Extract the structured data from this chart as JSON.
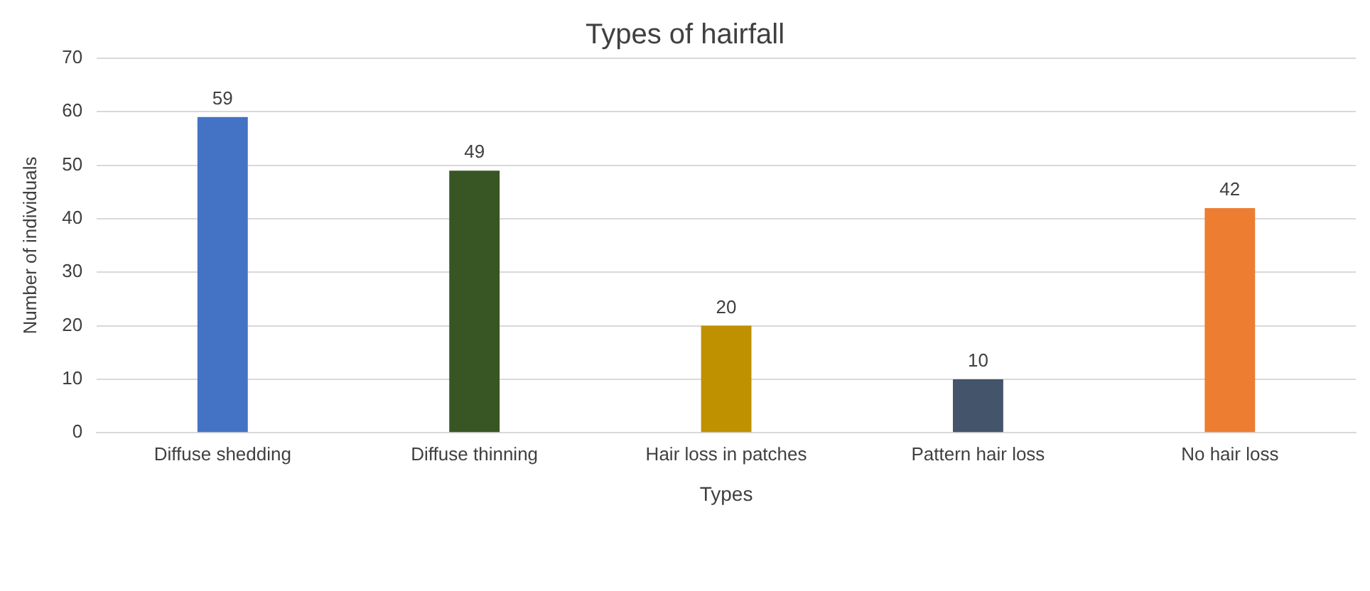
{
  "chart_data": {
    "type": "bar",
    "title": "Types of hairfall",
    "xlabel": "Types",
    "ylabel": "Number of individuals",
    "categories": [
      "Diffuse shedding",
      "Diffuse thinning",
      "Hair loss in patches",
      "Pattern hair loss",
      "No hair loss"
    ],
    "values": [
      59,
      49,
      20,
      10,
      42
    ],
    "colors": [
      "#4472c4",
      "#375623",
      "#bf9000",
      "#44546a",
      "#ed7d31"
    ],
    "ylim": [
      0,
      70
    ],
    "yticks": [
      0,
      10,
      20,
      30,
      40,
      50,
      60,
      70
    ],
    "grid": "y",
    "data_labels": true,
    "legend": false
  }
}
